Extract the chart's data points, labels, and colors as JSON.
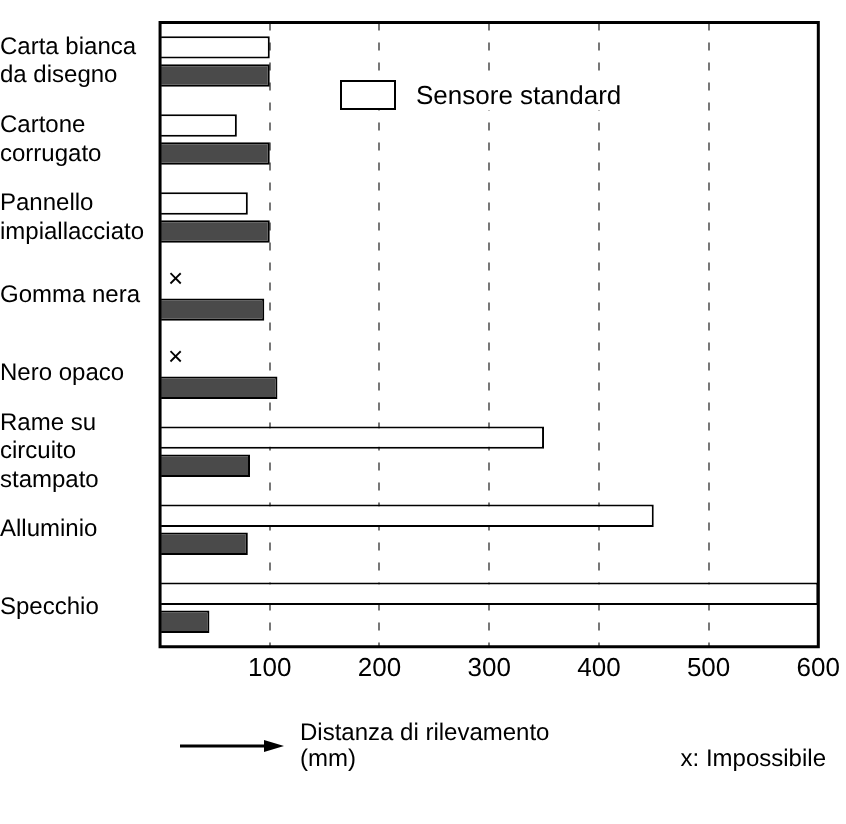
{
  "chart_data": {
    "type": "bar",
    "orientation": "horizontal",
    "xlabel": "Distanza di rilevamento (mm)",
    "categories": [
      "Carta bianca da disegno",
      "Cartone corrugato",
      "Pannello impiallacciato",
      "Gomma nera",
      "Nero opaco",
      "Rame su circuito stampato",
      "Alluminio",
      "Specchio"
    ],
    "series": [
      {
        "name": "Sensore standard",
        "color": "#ffffff",
        "values": [
          100,
          70,
          80,
          null,
          null,
          350,
          450,
          600
        ]
      },
      {
        "color": "#4a4a4a",
        "values": [
          100,
          100,
          100,
          95,
          107,
          82,
          80,
          45
        ]
      }
    ],
    "xlim": [
      0,
      600
    ],
    "xticks": [
      {
        "value": 0,
        "label": null
      },
      100,
      200,
      300,
      400,
      500,
      600
    ],
    "grid": "x",
    "legend": "top right",
    "annotations": [
      {
        "text": "×",
        "x": 0,
        "y": "Gomma nera"
      },
      {
        "text": "×",
        "x": 0,
        "y": "Nero opaco"
      },
      "x: Impossibile"
    ]
  }
}
